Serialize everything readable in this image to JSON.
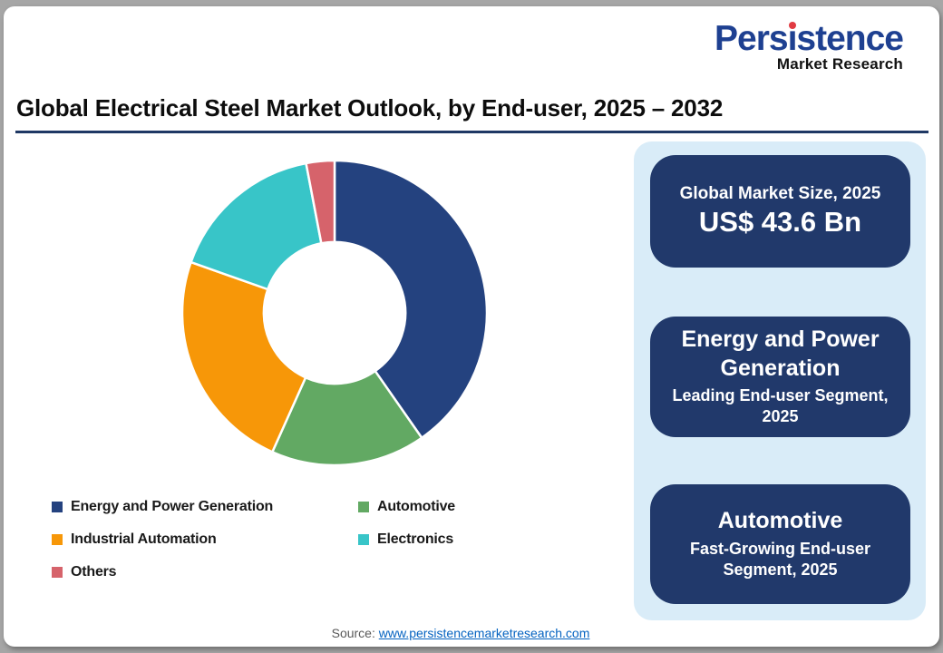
{
  "window": {
    "frame_color": "#a6a6a6",
    "card_color": "#ffffff"
  },
  "logo": {
    "wordmark": "Persistence",
    "tagline": "Market Research",
    "wordmark_color": "#1e4091",
    "dot_color": "#e13b42",
    "tagline_color": "#111111"
  },
  "header": {
    "title": "Global Electrical Steel Market Outlook, by End-user, 2025 – 2032",
    "underline_color": "#1f3864"
  },
  "chart_data": {
    "type": "pie",
    "subtype": "donut",
    "direction": "clockwise",
    "start_angle_deg": 0,
    "inner_radius_ratio": 0.465,
    "gap_color": "#ffffff",
    "legend_position": "bottom-left",
    "segments": [
      {
        "label": "Energy and Power Generation",
        "value_pct": 40.3,
        "color": "#24427f"
      },
      {
        "label": "Automotive",
        "value_pct": 16.4,
        "color": "#62a963"
      },
      {
        "label": "Industrial Automation",
        "value_pct": 23.7,
        "color": "#f79708"
      },
      {
        "label": "Electronics",
        "value_pct": 16.6,
        "color": "#38c5c8"
      },
      {
        "label": "Others",
        "value_pct": 3.0,
        "color": "#d6636b"
      }
    ]
  },
  "panel": {
    "background": "#d9ecf8",
    "box_color": "#21396b",
    "boxes": [
      {
        "heading": "Global Market Size, 2025",
        "value": "US$ 43.6 Bn"
      },
      {
        "title": "Energy and Power Generation",
        "subtitle": "Leading End-user Segment, 2025"
      },
      {
        "title": "Automotive",
        "subtitle": "Fast-Growing End-user Segment, 2025"
      }
    ]
  },
  "footer": {
    "source_prefix": "Source: ",
    "source_link": "www.persistencemarketresearch.com",
    "link_color": "#0563c1"
  }
}
